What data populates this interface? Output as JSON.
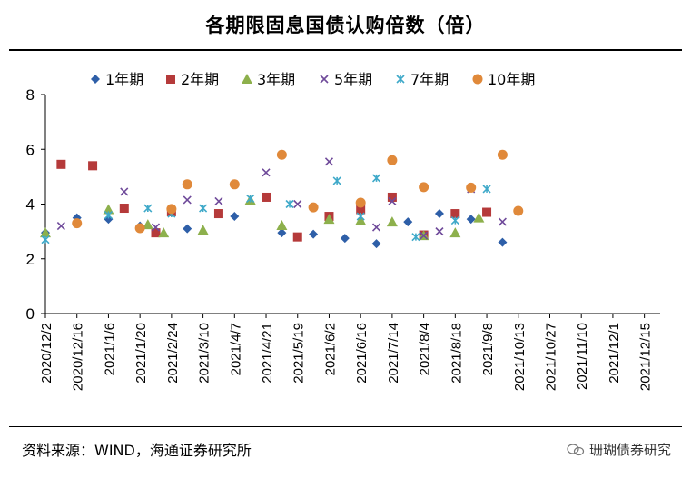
{
  "title": "各期限固息国债认购倍数（倍）",
  "source": "资料来源：WIND，海通证券研究所",
  "watermark": "珊瑚债券研究",
  "chart_data": {
    "type": "scatter",
    "title": "各期限固息国债认购倍数（倍）",
    "xlabel": "",
    "ylabel": "",
    "ylim": [
      0,
      8
    ],
    "yticks": [
      0,
      2,
      4,
      6,
      8
    ],
    "legend_position": "top",
    "categories": [
      "2020/12/2",
      "2020/12/16",
      "2021/1/6",
      "2021/1/20",
      "2021/2/24",
      "2021/3/10",
      "2021/4/7",
      "2021/4/21",
      "2021/5/19",
      "2021/6/2",
      "2021/6/16",
      "2021/7/14",
      "2021/8/4",
      "2021/8/18",
      "2021/9/8",
      "2021/10/13",
      "2021/10/27",
      "2021/11/10",
      "2021/12/1",
      "2021/12/15"
    ],
    "series": [
      {
        "name": "1年期",
        "marker": "diamond",
        "color": "#2E5FA8",
        "points": [
          [
            0,
            2.95
          ],
          [
            1,
            3.5
          ],
          [
            2,
            3.45
          ],
          [
            3,
            3.2
          ],
          [
            4.5,
            3.1
          ],
          [
            6,
            3.55
          ],
          [
            7.5,
            2.95
          ],
          [
            8.5,
            2.9
          ],
          [
            9.5,
            2.75
          ],
          [
            10.5,
            2.55
          ],
          [
            11.5,
            3.35
          ],
          [
            12.5,
            3.65
          ],
          [
            13.5,
            3.45
          ],
          [
            14.5,
            2.6
          ]
        ]
      },
      {
        "name": "2年期",
        "marker": "square",
        "color": "#B53A3A",
        "points": [
          [
            0.5,
            5.45
          ],
          [
            1.5,
            5.4
          ],
          [
            2.5,
            3.85
          ],
          [
            3.5,
            2.95
          ],
          [
            4,
            3.72
          ],
          [
            5.5,
            3.65
          ],
          [
            7,
            4.25
          ],
          [
            8,
            2.8
          ],
          [
            9,
            3.55
          ],
          [
            10,
            3.8
          ],
          [
            11,
            4.25
          ],
          [
            12,
            2.87
          ],
          [
            13,
            3.65
          ],
          [
            14,
            3.7
          ]
        ]
      },
      {
        "name": "3年期",
        "marker": "triangle",
        "color": "#8DB04C",
        "points": [
          [
            0,
            2.95
          ],
          [
            2,
            3.8
          ],
          [
            3.25,
            3.25
          ],
          [
            3.75,
            2.95
          ],
          [
            5,
            3.05
          ],
          [
            6.5,
            4.15
          ],
          [
            7.5,
            3.22
          ],
          [
            9,
            3.45
          ],
          [
            10,
            3.4
          ],
          [
            11,
            3.35
          ],
          [
            12,
            2.85
          ],
          [
            13,
            2.95
          ],
          [
            13.75,
            3.5
          ]
        ]
      },
      {
        "name": "5年期",
        "marker": "x",
        "color": "#6F4A9A",
        "points": [
          [
            0.5,
            3.2
          ],
          [
            2.5,
            4.45
          ],
          [
            3.5,
            3.15
          ],
          [
            4.5,
            4.15
          ],
          [
            5.5,
            4.1
          ],
          [
            7,
            5.15
          ],
          [
            8,
            4.0
          ],
          [
            9,
            5.55
          ],
          [
            10.5,
            3.15
          ],
          [
            11,
            4.1
          ],
          [
            12,
            2.85
          ],
          [
            12.5,
            3.0
          ],
          [
            13.5,
            4.55
          ],
          [
            14.5,
            3.35
          ]
        ]
      },
      {
        "name": "7年期",
        "marker": "asterisk",
        "color": "#3FA9C9",
        "points": [
          [
            0,
            2.7
          ],
          [
            2,
            3.6
          ],
          [
            3.25,
            3.85
          ],
          [
            4,
            3.65
          ],
          [
            5,
            3.85
          ],
          [
            6.5,
            4.2
          ],
          [
            7.75,
            4.0
          ],
          [
            9.25,
            4.85
          ],
          [
            10,
            3.55
          ],
          [
            10.5,
            4.95
          ],
          [
            11.75,
            2.8
          ],
          [
            13,
            3.4
          ],
          [
            14,
            4.55
          ]
        ]
      },
      {
        "name": "10年期",
        "marker": "circle",
        "color": "#E0893A",
        "points": [
          [
            1,
            3.3
          ],
          [
            3,
            3.12
          ],
          [
            4,
            3.82
          ],
          [
            4.5,
            4.72
          ],
          [
            6,
            4.72
          ],
          [
            7.5,
            5.8
          ],
          [
            8.5,
            3.88
          ],
          [
            10,
            4.05
          ],
          [
            11,
            5.6
          ],
          [
            12,
            4.62
          ],
          [
            13.5,
            4.6
          ],
          [
            14.5,
            5.8
          ],
          [
            15,
            3.75
          ]
        ]
      }
    ]
  }
}
